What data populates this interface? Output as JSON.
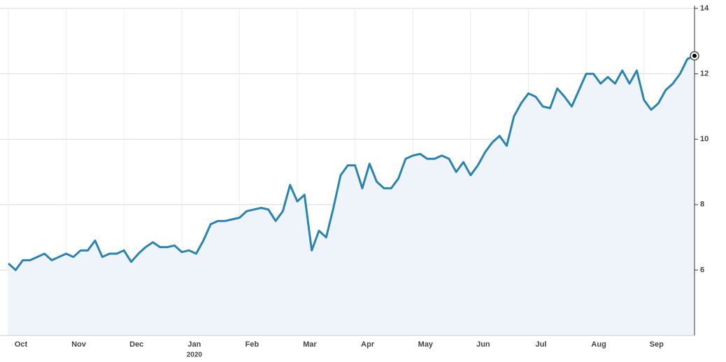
{
  "chart_data": {
    "type": "line",
    "color": "#2b84b0",
    "fill": "#eef4f9",
    "grid": true,
    "categories": [
      "Oct",
      null,
      null,
      null,
      null,
      null,
      null,
      null,
      "Nov",
      null,
      null,
      null,
      null,
      null,
      null,
      null,
      "Dec",
      null,
      null,
      null,
      null,
      null,
      null,
      null,
      "Jan",
      null,
      null,
      null,
      null,
      null,
      null,
      null,
      "Feb",
      null,
      null,
      null,
      null,
      null,
      null,
      null,
      "Mar",
      null,
      null,
      null,
      null,
      null,
      null,
      null,
      "Apr",
      null,
      null,
      null,
      null,
      null,
      null,
      null,
      "May",
      null,
      null,
      null,
      null,
      null,
      null,
      null,
      "Jun",
      null,
      null,
      null,
      null,
      null,
      null,
      null,
      "Jul",
      null,
      null,
      null,
      null,
      null,
      null,
      null,
      "Aug",
      null,
      null,
      null,
      null,
      null,
      null,
      null,
      "Sep",
      null,
      null,
      null,
      null,
      null,
      null,
      null
    ],
    "year_label": "2020",
    "values": [
      6.2,
      6.0,
      6.3,
      6.3,
      6.4,
      6.5,
      6.3,
      6.4,
      6.5,
      6.4,
      6.6,
      6.6,
      6.9,
      6.4,
      6.5,
      6.5,
      6.6,
      6.25,
      6.5,
      6.7,
      6.85,
      6.7,
      6.7,
      6.75,
      6.55,
      6.6,
      6.5,
      6.9,
      7.4,
      7.5,
      7.5,
      7.55,
      7.6,
      7.8,
      7.85,
      7.9,
      7.85,
      7.5,
      7.8,
      8.6,
      8.1,
      8.3,
      6.6,
      7.2,
      7.0,
      7.9,
      8.9,
      9.2,
      9.2,
      8.5,
      9.25,
      8.7,
      8.5,
      8.5,
      8.8,
      9.4,
      9.5,
      9.55,
      9.4,
      9.4,
      9.5,
      9.4,
      9.0,
      9.3,
      8.9,
      9.2,
      9.6,
      9.9,
      10.1,
      9.8,
      10.7,
      11.1,
      11.4,
      11.3,
      11.0,
      10.95,
      11.55,
      11.3,
      11.0,
      11.5,
      12.0,
      12.0,
      11.7,
      11.9,
      11.7,
      12.1,
      11.7,
      12.1,
      11.2,
      10.9,
      11.1,
      11.5,
      11.7,
      12.0,
      12.45,
      12.55
    ],
    "ylim": [
      4,
      14
    ],
    "yticks": [
      6,
      8,
      10,
      12,
      14
    ]
  }
}
